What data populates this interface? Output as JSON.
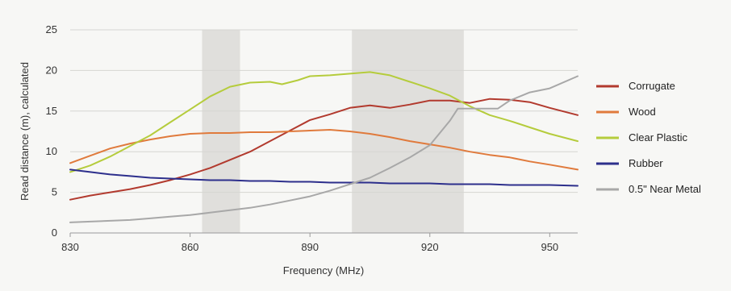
{
  "chart_data": {
    "type": "line",
    "title": "",
    "xlabel": "Frequency (MHz)",
    "ylabel": "Read distance (m), calculated",
    "xlim": [
      830,
      957
    ],
    "ylim": [
      0,
      25
    ],
    "x_ticks": [
      830,
      860,
      890,
      920,
      950
    ],
    "y_ticks": [
      0,
      5,
      10,
      15,
      20,
      25
    ],
    "grid": "horizontal",
    "legend_position": "right",
    "shaded_bands": [
      [
        863,
        872.5
      ],
      [
        900.5,
        928.5
      ]
    ],
    "series": [
      {
        "name": "Corrugate",
        "color": "#b23a2e",
        "x": [
          830,
          835,
          840,
          845,
          850,
          855,
          860,
          865,
          870,
          875,
          880,
          885,
          890,
          895,
          900,
          905,
          910,
          915,
          920,
          925,
          930,
          935,
          940,
          945,
          950,
          957
        ],
        "y": [
          4.1,
          4.6,
          5.0,
          5.4,
          5.9,
          6.5,
          7.2,
          8.0,
          9.0,
          10.0,
          11.3,
          12.6,
          13.9,
          14.6,
          15.4,
          15.7,
          15.4,
          15.8,
          16.3,
          16.3,
          16.0,
          16.5,
          16.4,
          16.1,
          15.4,
          14.5
        ]
      },
      {
        "name": "Wood",
        "color": "#e07a3c",
        "x": [
          830,
          835,
          840,
          845,
          850,
          855,
          860,
          865,
          870,
          875,
          880,
          885,
          890,
          895,
          900,
          905,
          910,
          915,
          920,
          925,
          930,
          935,
          940,
          945,
          950,
          957
        ],
        "y": [
          8.6,
          9.5,
          10.4,
          11.0,
          11.5,
          11.9,
          12.2,
          12.3,
          12.3,
          12.4,
          12.4,
          12.5,
          12.6,
          12.7,
          12.5,
          12.2,
          11.8,
          11.3,
          10.9,
          10.5,
          10.0,
          9.6,
          9.3,
          8.8,
          8.4,
          7.8
        ]
      },
      {
        "name": "Clear Plastic",
        "color": "#b5cc3c",
        "x": [
          830,
          835,
          840,
          845,
          850,
          855,
          860,
          865,
          870,
          875,
          880,
          883,
          887,
          890,
          895,
          900,
          905,
          910,
          915,
          920,
          925,
          930,
          935,
          940,
          945,
          950,
          957
        ],
        "y": [
          7.5,
          8.3,
          9.4,
          10.7,
          12.0,
          13.6,
          15.2,
          16.8,
          18.0,
          18.5,
          18.6,
          18.3,
          18.8,
          19.3,
          19.4,
          19.6,
          19.8,
          19.4,
          18.6,
          17.8,
          16.9,
          15.6,
          14.5,
          13.8,
          13.0,
          12.2,
          11.3
        ]
      },
      {
        "name": "Rubber",
        "color": "#2d2f8c",
        "x": [
          830,
          835,
          840,
          845,
          850,
          855,
          860,
          865,
          870,
          875,
          880,
          885,
          890,
          895,
          900,
          905,
          910,
          915,
          920,
          925,
          930,
          935,
          940,
          945,
          950,
          957
        ],
        "y": [
          7.8,
          7.5,
          7.2,
          7.0,
          6.8,
          6.7,
          6.6,
          6.5,
          6.5,
          6.4,
          6.4,
          6.3,
          6.3,
          6.2,
          6.2,
          6.2,
          6.1,
          6.1,
          6.1,
          6.0,
          6.0,
          6.0,
          5.9,
          5.9,
          5.9,
          5.8
        ]
      },
      {
        "name": "0.5\" Near Metal",
        "color": "#a8a8a8",
        "x": [
          830,
          835,
          840,
          845,
          850,
          855,
          860,
          865,
          870,
          875,
          880,
          885,
          890,
          895,
          900,
          905,
          910,
          915,
          920,
          925,
          927,
          930,
          935,
          937,
          940,
          945,
          950,
          957
        ],
        "y": [
          1.3,
          1.4,
          1.5,
          1.6,
          1.8,
          2.0,
          2.2,
          2.5,
          2.8,
          3.1,
          3.5,
          4.0,
          4.5,
          5.2,
          6.0,
          6.8,
          8.0,
          9.3,
          10.8,
          13.8,
          15.3,
          15.3,
          15.3,
          15.3,
          16.3,
          17.3,
          17.8,
          19.3
        ]
      }
    ]
  }
}
